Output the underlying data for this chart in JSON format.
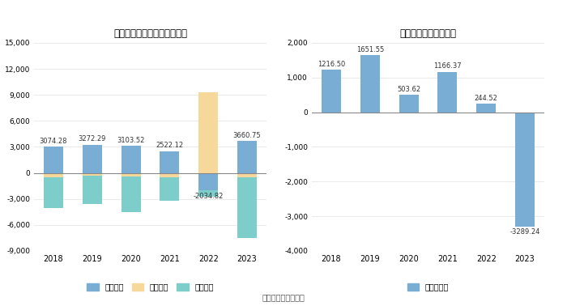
{
  "left_title": "联迪信息现金流净额（万元）",
  "right_title": "自由现金流量（万元）",
  "years": [
    "2018",
    "2019",
    "2020",
    "2021",
    "2022",
    "2023"
  ],
  "net_labels": [
    3074.28,
    3272.29,
    3103.52,
    2522.12,
    -2034.82,
    3660.75
  ],
  "operating": [
    3074.28,
    3272.29,
    3103.52,
    2522.12,
    -2034.82,
    3660.75
  ],
  "financing": [
    -500,
    -350,
    -450,
    -550,
    9300,
    -480
  ],
  "investing": [
    -3600,
    -3200,
    -4100,
    -2650,
    -720,
    -7050
  ],
  "free_cf": [
    1216.5,
    1651.55,
    503.62,
    1166.37,
    244.52,
    -3289.24
  ],
  "free_cf_labels": [
    "1216.50",
    "1651.55",
    "503.62",
    "1166.37",
    "244.52",
    "-3289.24"
  ],
  "color_operating": "#7aadd4",
  "color_financing": "#f5d89a",
  "color_investing": "#7dceca",
  "color_free_cf": "#7aadd4",
  "left_ylim": [
    -9000,
    15000
  ],
  "left_yticks": [
    -9000,
    -6000,
    -3000,
    0,
    3000,
    6000,
    9000,
    12000,
    15000
  ],
  "right_ylim": [
    -4000,
    2000
  ],
  "right_yticks": [
    -4000,
    -3000,
    -2000,
    -1000,
    0,
    1000,
    2000
  ],
  "legend_left": [
    "经营活动",
    "筹资活动",
    "投资活动"
  ],
  "legend_right": [
    "自由现金流"
  ],
  "source_text": "数据来源：恒生聚源",
  "bg_color": "#ffffff"
}
